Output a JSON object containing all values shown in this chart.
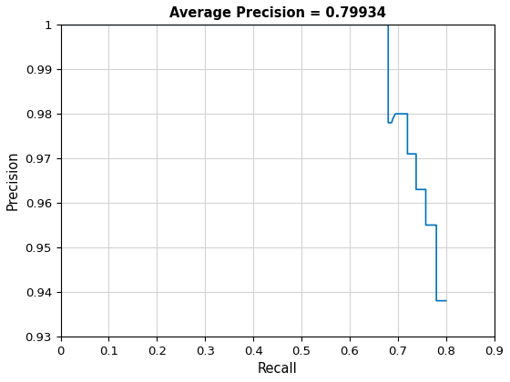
{
  "title": "Average Precision = 0.79934",
  "xlabel": "Recall",
  "ylabel": "Precision",
  "xlim": [
    0,
    0.9
  ],
  "ylim": [
    0.93,
    1.0
  ],
  "xticks": [
    0,
    0.1,
    0.2,
    0.3,
    0.4,
    0.5,
    0.6,
    0.7,
    0.8,
    0.9
  ],
  "yticks": [
    0.93,
    0.94,
    0.95,
    0.96,
    0.97,
    0.98,
    0.99,
    1.0
  ],
  "line_color": "#0072bd",
  "line_width": 1.2,
  "recall": [
    0.0,
    0.68,
    0.68,
    0.687,
    0.69,
    0.695,
    0.7,
    0.703,
    0.705,
    0.71,
    0.716,
    0.718,
    0.72,
    0.72,
    0.723,
    0.726,
    0.728,
    0.73,
    0.733,
    0.738,
    0.738,
    0.751,
    0.753,
    0.756,
    0.758,
    0.758,
    0.77,
    0.773,
    0.776,
    0.778,
    0.78,
    0.78,
    0.8,
    0.8
  ],
  "precision": [
    1.0,
    1.0,
    0.978,
    0.978,
    0.979,
    0.98,
    0.98,
    0.98,
    0.98,
    0.98,
    0.98,
    0.98,
    0.98,
    0.971,
    0.971,
    0.971,
    0.971,
    0.971,
    0.971,
    0.971,
    0.963,
    0.963,
    0.963,
    0.963,
    0.963,
    0.955,
    0.955,
    0.955,
    0.955,
    0.955,
    0.955,
    0.938,
    0.938,
    0.938
  ]
}
